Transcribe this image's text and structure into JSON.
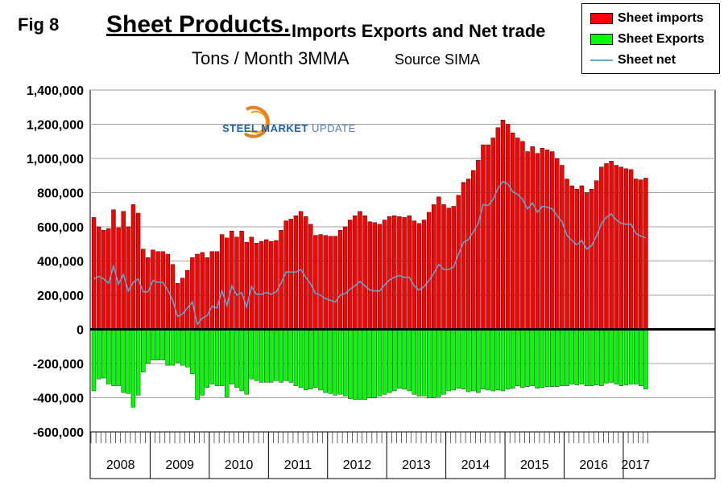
{
  "header": {
    "fig_label": "Fig 8",
    "title_main": "Sheet Products.",
    "title_rest": "Imports Exports and Net trade",
    "subtitle": "Tons / Month 3MMA",
    "source": "Source SIMA"
  },
  "logo": {
    "text_bold": "STEEL MARKET",
    "text_light": "UPDATE"
  },
  "colors": {
    "imports": "#ff0000",
    "exports": "#00ff00",
    "net": "#5fa8d8"
  },
  "chart_data": {
    "type": "bar",
    "title": "Sheet Products. Imports Exports and Net trade",
    "ylabel": "",
    "xlabel": "",
    "ylim": [
      -600000,
      1400000
    ],
    "yticks": [
      1400000,
      1200000,
      1000000,
      800000,
      600000,
      400000,
      200000,
      0,
      -200000,
      -400000,
      -600000
    ],
    "ytick_labels": [
      "1,400,000",
      "1,200,000",
      "1,000,000",
      "800,000",
      "600,000",
      "400,000",
      "200,000",
      "0",
      "-200,000",
      "-400,000",
      "-600,000"
    ],
    "years": [
      "2008",
      "2009",
      "2010",
      "2011",
      "2012",
      "2013",
      "2014",
      "2015",
      "2016",
      "2017"
    ],
    "months_per_year": [
      12,
      12,
      12,
      12,
      12,
      12,
      12,
      12,
      12,
      5
    ],
    "grid": true,
    "legend": "top-right",
    "series": [
      {
        "name": "Sheet imports",
        "type": "bar",
        "values": [
          655000,
          600000,
          580000,
          590000,
          700000,
          595000,
          690000,
          600000,
          730000,
          680000,
          470000,
          420000,
          465000,
          455000,
          455000,
          440000,
          380000,
          270000,
          300000,
          345000,
          420000,
          440000,
          450000,
          420000,
          455000,
          455000,
          555000,
          535000,
          575000,
          540000,
          575000,
          510000,
          540000,
          505000,
          515000,
          525000,
          515000,
          520000,
          580000,
          635000,
          645000,
          665000,
          690000,
          660000,
          615000,
          550000,
          555000,
          550000,
          545000,
          545000,
          580000,
          600000,
          640000,
          665000,
          690000,
          665000,
          630000,
          625000,
          615000,
          640000,
          660000,
          665000,
          660000,
          655000,
          665000,
          635000,
          620000,
          640000,
          685000,
          730000,
          775000,
          730000,
          710000,
          720000,
          785000,
          860000,
          880000,
          930000,
          990000,
          1080000,
          1080000,
          1120000,
          1180000,
          1225000,
          1200000,
          1150000,
          1120000,
          1100000,
          1040000,
          1070000,
          1030000,
          1060000,
          1050000,
          1040000,
          1000000,
          960000,
          880000,
          840000,
          820000,
          840000,
          800000,
          820000,
          870000,
          950000,
          970000,
          985000,
          960000,
          950000,
          940000,
          935000,
          880000,
          875000,
          885000
        ]
      },
      {
        "name": "Sheet Exports",
        "type": "bar",
        "values": [
          -360000,
          -290000,
          -285000,
          -320000,
          -330000,
          -330000,
          -370000,
          -375000,
          -455000,
          -385000,
          -250000,
          -200000,
          -180000,
          -180000,
          -180000,
          -210000,
          -210000,
          -195000,
          -210000,
          -220000,
          -260000,
          -410000,
          -385000,
          -340000,
          -320000,
          -330000,
          -330000,
          -395000,
          -320000,
          -340000,
          -360000,
          -380000,
          -290000,
          -300000,
          -310000,
          -310000,
          -310000,
          -300000,
          -310000,
          -300000,
          -310000,
          -330000,
          -340000,
          -355000,
          -350000,
          -340000,
          -355000,
          -370000,
          -375000,
          -385000,
          -380000,
          -390000,
          -405000,
          -410000,
          -410000,
          -410000,
          -400000,
          -400000,
          -390000,
          -380000,
          -370000,
          -360000,
          -345000,
          -350000,
          -360000,
          -380000,
          -390000,
          -390000,
          -400000,
          -400000,
          -395000,
          -380000,
          -360000,
          -355000,
          -345000,
          -350000,
          -365000,
          -360000,
          -370000,
          -350000,
          -355000,
          -360000,
          -355000,
          -360000,
          -350000,
          -345000,
          -330000,
          -340000,
          -335000,
          -330000,
          -345000,
          -340000,
          -335000,
          -335000,
          -335000,
          -330000,
          -330000,
          -320000,
          -325000,
          -320000,
          -330000,
          -330000,
          -325000,
          -330000,
          -315000,
          -310000,
          -320000,
          -330000,
          -325000,
          -320000,
          -320000,
          -330000,
          -350000
        ]
      },
      {
        "name": "Sheet net",
        "type": "line",
        "values": [
          295000,
          310000,
          295000,
          270000,
          370000,
          265000,
          320000,
          225000,
          275000,
          295000,
          220000,
          220000,
          285000,
          275000,
          275000,
          230000,
          170000,
          75000,
          90000,
          125000,
          160000,
          30000,
          65000,
          80000,
          135000,
          125000,
          225000,
          140000,
          255000,
          200000,
          215000,
          130000,
          250000,
          205000,
          205000,
          215000,
          205000,
          220000,
          270000,
          335000,
          335000,
          335000,
          350000,
          305000,
          265000,
          210000,
          200000,
          180000,
          170000,
          160000,
          200000,
          210000,
          235000,
          255000,
          280000,
          255000,
          230000,
          225000,
          225000,
          260000,
          290000,
          305000,
          315000,
          305000,
          305000,
          255000,
          230000,
          250000,
          285000,
          330000,
          380000,
          350000,
          350000,
          365000,
          440000,
          510000,
          525000,
          570000,
          620000,
          730000,
          725000,
          760000,
          825000,
          865000,
          850000,
          805000,
          790000,
          760000,
          705000,
          740000,
          685000,
          720000,
          715000,
          705000,
          665000,
          630000,
          550000,
          520000,
          495000,
          520000,
          470000,
          490000,
          545000,
          620000,
          655000,
          675000,
          640000,
          620000,
          615000,
          615000,
          560000,
          545000,
          535000
        ]
      }
    ]
  }
}
